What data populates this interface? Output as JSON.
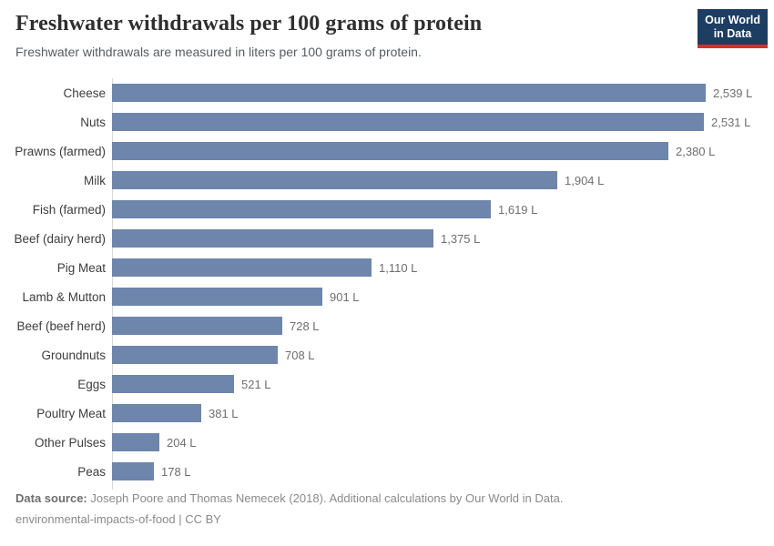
{
  "header": {
    "title": "Freshwater withdrawals per 100 grams of protein",
    "subtitle": "Freshwater withdrawals are measured in liters per 100 grams of protein.",
    "logo": {
      "line1": "Our World",
      "line2": "in Data"
    }
  },
  "chart_data": {
    "type": "bar",
    "orientation": "horizontal",
    "title": "Freshwater withdrawals per 100 grams of protein",
    "xlabel": "",
    "ylabel": "",
    "unit": "L",
    "xlim": [
      0,
      2539
    ],
    "grid": false,
    "legend": "none",
    "bar_color": "#6e85ac",
    "categories": [
      "Cheese",
      "Nuts",
      "Prawns (farmed)",
      "Milk",
      "Fish (farmed)",
      "Beef (dairy herd)",
      "Pig Meat",
      "Lamb & Mutton",
      "Beef (beef herd)",
      "Groundnuts",
      "Eggs",
      "Poultry Meat",
      "Other Pulses",
      "Peas"
    ],
    "values": [
      2539,
      2531,
      2380,
      1904,
      1619,
      1375,
      1110,
      901,
      728,
      708,
      521,
      381,
      204,
      178
    ],
    "value_labels": [
      "2,539 L",
      "2,531 L",
      "2,380 L",
      "1,904 L",
      "1,619 L",
      "1,375 L",
      "1,110 L",
      "901 L",
      "728 L",
      "708 L",
      "521 L",
      "381 L",
      "204 L",
      "178 L"
    ]
  },
  "footer": {
    "source_label": "Data source:",
    "source_text": " Joseph Poore and Thomas Nemecek (2018). Additional calculations by Our World in Data.",
    "note_link": "environmental-impacts-of-food",
    "separator": " | ",
    "license": "CC BY"
  },
  "colors": {
    "bar": "#6e85ac",
    "logo_background": "#1d3d63",
    "logo_accent": "#d93025",
    "axis_line": "#d8d8d8"
  }
}
